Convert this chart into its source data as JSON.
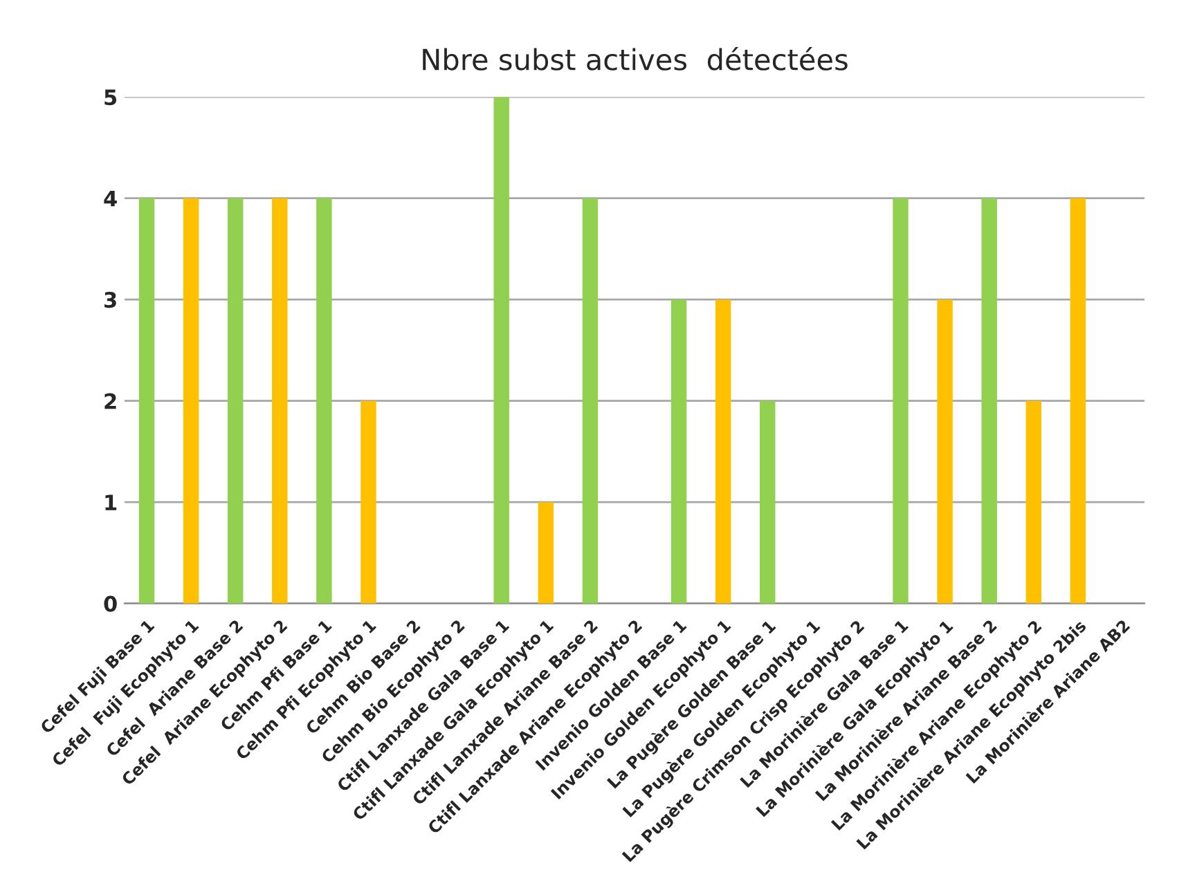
{
  "chart_data": {
    "type": "bar",
    "title": "Nbre subst actives  détectées",
    "categories": [
      "Cefel Fuji Base 1",
      "Cefel  Fuji Ecophyto 1",
      "Cefel  Ariane Base 2",
      "Cefel  Ariane Ecophyto 2",
      "Cehm Pfi Base 1",
      "Cehm Pfi Ecophyto 1",
      "Cehm Bio Base 2",
      "Cehm Bio Ecophyto 2",
      "Ctifl Lanxade Gala Base 1",
      "Ctifl Lanxade Gala Ecophyto 1",
      "Ctifl Lanxade Ariane Base 2",
      "Ctifl Lanxade Ariane Ecophyto 2",
      "Invenio Golden Base 1",
      "Invenio Golden Ecophyto 1",
      "La Pugère Golden Base 1",
      "La Pugère Golden Ecophyto 1",
      "La Pugère Crimson Crisp Ecophyto 2",
      "La Morinière Gala Base 1",
      "La Morinière Gala Ecophyto 1",
      "La Morinière Ariane Base 2",
      "La Morinière Ariane Ecophyto 2",
      "La Morinière Ariane Ecophyto 2bis",
      "La Morinière Ariane AB2"
    ],
    "values": [
      4,
      4,
      4,
      4,
      4,
      2,
      0,
      0,
      5,
      1,
      4,
      0,
      3,
      3,
      2,
      0,
      0,
      4,
      3,
      4,
      2,
      4,
      0
    ],
    "colors": [
      "#92d050",
      "#ffc000",
      "#92d050",
      "#ffc000",
      "#92d050",
      "#ffc000",
      null,
      null,
      "#92d050",
      "#ffc000",
      "#92d050",
      null,
      "#92d050",
      "#ffc000",
      "#92d050",
      null,
      null,
      "#92d050",
      "#ffc000",
      "#92d050",
      "#ffc000",
      "#ffc000",
      null
    ],
    "ylim": [
      0,
      5
    ],
    "yticks": [
      0,
      1,
      2,
      3,
      4,
      5
    ],
    "grid": "y",
    "legend": false
  }
}
